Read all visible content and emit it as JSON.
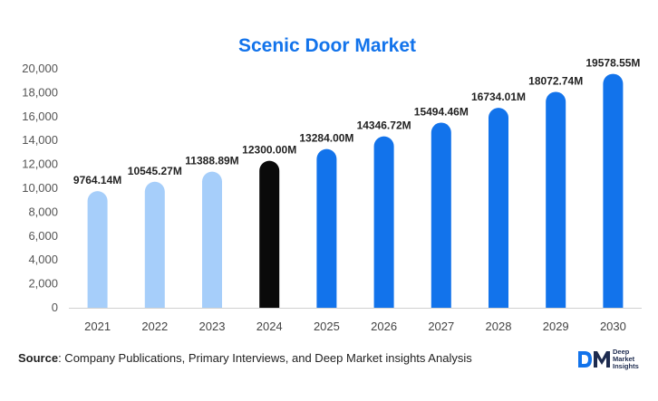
{
  "chart_data": {
    "type": "bar",
    "title": "Scenic Door Market",
    "categories": [
      "2021",
      "2022",
      "2023",
      "2024",
      "2025",
      "2026",
      "2027",
      "2028",
      "2029",
      "2030"
    ],
    "values": [
      9764.14,
      10545.27,
      11388.89,
      12300.0,
      13284.0,
      14346.72,
      15494.46,
      16734.01,
      18072.74,
      19578.55
    ],
    "data_labels": [
      "9764.14M",
      "10545.27M",
      "11388.89M",
      "12300.00M",
      "13284.00M",
      "14346.72M",
      "15494.46M",
      "16734.01M",
      "18072.74M",
      "19578.55M"
    ],
    "bar_colors": [
      "#a6cefa",
      "#a6cefa",
      "#a6cefa",
      "#0a0a0a",
      "#1273eb",
      "#1273eb",
      "#1273eb",
      "#1273eb",
      "#1273eb",
      "#1273eb"
    ],
    "ylim": [
      0,
      20000
    ],
    "yticks": [
      0,
      2000,
      4000,
      6000,
      8000,
      10000,
      12000,
      14000,
      16000,
      18000,
      20000
    ],
    "ytick_labels": [
      "0",
      "2,000",
      "4,000",
      "6,000",
      "8,000",
      "10,000",
      "12,000",
      "14,000",
      "16,000",
      "18,000",
      "20,000"
    ],
    "xlabel": "",
    "ylabel": "",
    "grid": false,
    "legend": "none"
  },
  "footer": {
    "source_label": "Source",
    "source_text": ": Company Publications, Primary Interviews, and Deep Market insights Analysis"
  },
  "logo": {
    "mark": "DM",
    "line1": "Deep",
    "line2": "Market",
    "line3": "Insights",
    "mark_color": "#1273eb",
    "text_color": "#1d2b4f"
  }
}
